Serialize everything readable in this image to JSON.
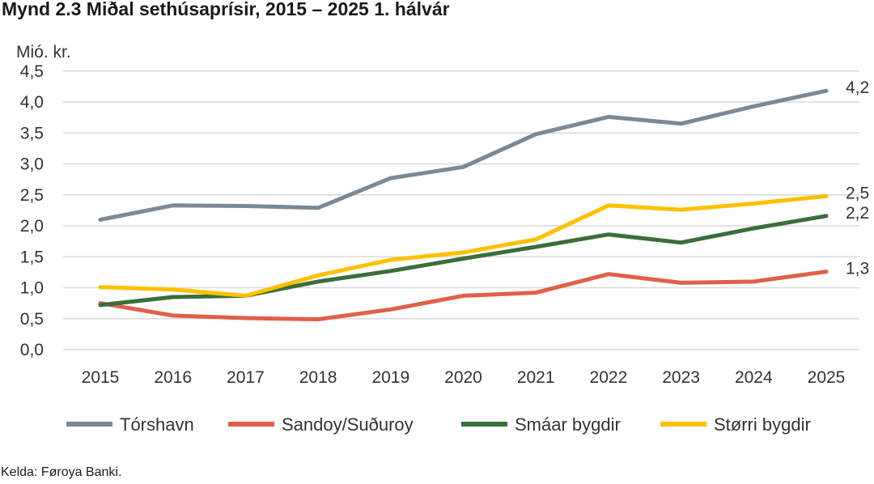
{
  "header": {
    "title": "Mynd 2.3 Miðal sethúsaprísir, 2015 – 2025 1. hálvár"
  },
  "footer": {
    "source": "Kelda: Føroya Banki."
  },
  "chart_data": {
    "type": "line",
    "title": "Mynd 2.3 Miðal sethúsaprísir, 2015 – 2025 1. hálvár",
    "xlabel": "",
    "ylabel": "Mió. kr.",
    "ylim": [
      0,
      4.5
    ],
    "yticks": [
      "0,0",
      "0,5",
      "1,0",
      "1,5",
      "2,0",
      "2,5",
      "3,0",
      "3,5",
      "4,0",
      "4,5"
    ],
    "categories": [
      "2015",
      "2016",
      "2017",
      "2018",
      "2019",
      "2020",
      "2021",
      "2022",
      "2023",
      "2024",
      "2025"
    ],
    "grid": "horizontal",
    "legend": "bottom",
    "series": [
      {
        "name": "Tórshavn",
        "color": "#7a8a94",
        "end_label": "4,2",
        "values": [
          2.1,
          2.33,
          2.32,
          2.29,
          2.77,
          2.95,
          3.48,
          3.76,
          3.65,
          3.93,
          4.18
        ]
      },
      {
        "name": "Sandoy/Suðuroy",
        "color": "#e0604a",
        "end_label": "1,3",
        "values": [
          0.75,
          0.55,
          0.51,
          0.49,
          0.65,
          0.87,
          0.92,
          1.22,
          1.08,
          1.1,
          1.26
        ]
      },
      {
        "name": "Smáar bygdir",
        "color": "#3a6e3a",
        "end_label": "2,2",
        "values": [
          0.72,
          0.85,
          0.87,
          1.1,
          1.27,
          1.47,
          1.66,
          1.86,
          1.73,
          1.96,
          2.16
        ]
      },
      {
        "name": "Størri bygdir",
        "color": "#ffc000",
        "end_label": "2,5",
        "values": [
          1.01,
          0.97,
          0.87,
          1.2,
          1.45,
          1.57,
          1.78,
          2.33,
          2.26,
          2.36,
          2.48
        ]
      }
    ]
  }
}
